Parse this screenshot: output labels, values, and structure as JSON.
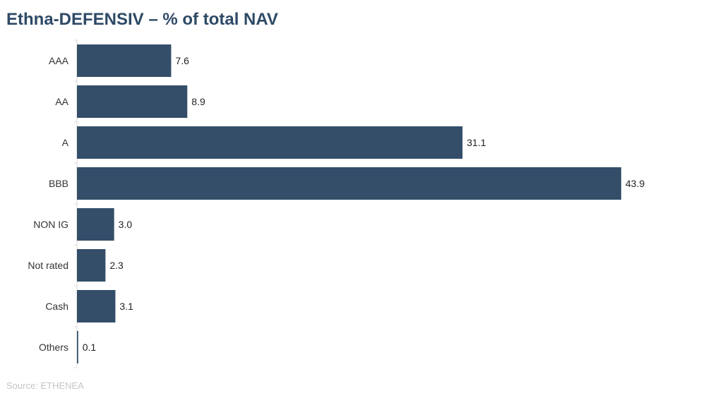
{
  "title": "Ethna-DEFENSIV – % of total NAV",
  "source": "Source: ETHENEA",
  "colors": {
    "bar": "#344e69",
    "title": "#2e4a66",
    "axis": "#d9d9d9",
    "source": "#c4c4c4"
  },
  "chart_data": {
    "type": "bar",
    "orientation": "horizontal",
    "title": "Ethna-DEFENSIV – % of total NAV",
    "categories": [
      "AAA",
      "AA",
      "A",
      "BBB",
      "NON IG",
      "Not rated",
      "Cash",
      "Others"
    ],
    "values": [
      7.6,
      8.9,
      31.1,
      43.9,
      3.0,
      2.3,
      3.1,
      0.1
    ],
    "value_labels": [
      "7.6",
      "8.9",
      "31.1",
      "43.9",
      "3.0",
      "2.3",
      "3.1",
      "0.1"
    ],
    "xlim": [
      0,
      45
    ],
    "grid": false,
    "legend": "none"
  }
}
